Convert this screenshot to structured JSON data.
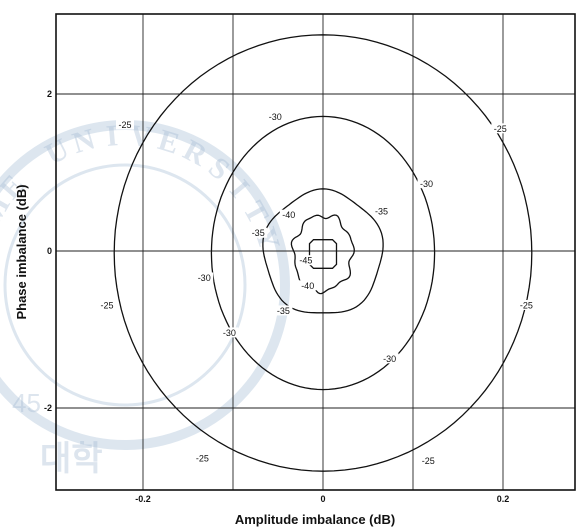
{
  "chart_data": {
    "type": "contour",
    "title": "",
    "xlabel": "Amplitude imbalance (dB)",
    "ylabel": "Phase imbalance (dB)",
    "xlim": [
      -0.28,
      0.28
    ],
    "ylim": [
      -3.0,
      2.9
    ],
    "x_ticks": [
      {
        "value": -0.2,
        "label": "-0.2"
      },
      {
        "value": -0.1,
        "label": ""
      },
      {
        "value": 0,
        "label": "0"
      },
      {
        "value": 0.1,
        "label": ""
      },
      {
        "value": 0.2,
        "label": "0.2"
      }
    ],
    "y_ticks": [
      {
        "value": -2,
        "label": "-2"
      },
      {
        "value": 0,
        "label": "0"
      },
      {
        "value": 2,
        "label": "2"
      }
    ],
    "grid": true,
    "contours": [
      {
        "level": -25,
        "rx": 0.232,
        "ry": 2.78,
        "label": "-25",
        "label_positions": [
          [
            -0.22,
            1.6
          ],
          [
            0.197,
            1.55
          ],
          [
            -0.24,
            -0.7
          ],
          [
            0.226,
            -0.7
          ],
          [
            -0.134,
            -2.65
          ],
          [
            0.117,
            -2.68
          ]
        ]
      },
      {
        "level": -30,
        "rx": 0.124,
        "ry": 1.74,
        "label": "-30",
        "label_positions": [
          [
            -0.053,
            1.7
          ],
          [
            0.115,
            0.85
          ],
          [
            -0.132,
            -0.35
          ],
          [
            -0.104,
            -1.05
          ],
          [
            0.074,
            -1.38
          ]
        ]
      },
      {
        "level": -35,
        "rx": 0.066,
        "ry": 0.79,
        "label": "-35",
        "label_positions": [
          [
            -0.072,
            0.22
          ],
          [
            0.065,
            0.5
          ],
          [
            -0.044,
            -0.77
          ]
        ]
      },
      {
        "level": -40,
        "rx": 0.033,
        "ry": 0.48,
        "label": "-40",
        "label_positions": [
          [
            -0.038,
            0.45
          ],
          [
            -0.017,
            -0.45
          ]
        ]
      },
      {
        "level": -45,
        "rx": 0.015,
        "ry": 0.26,
        "label": "-45",
        "label_positions": [
          [
            -0.019,
            -0.13
          ]
        ]
      }
    ]
  },
  "watermark": {
    "letters": "ME UNIVERSITY",
    "year": "45",
    "korean": "대학"
  }
}
